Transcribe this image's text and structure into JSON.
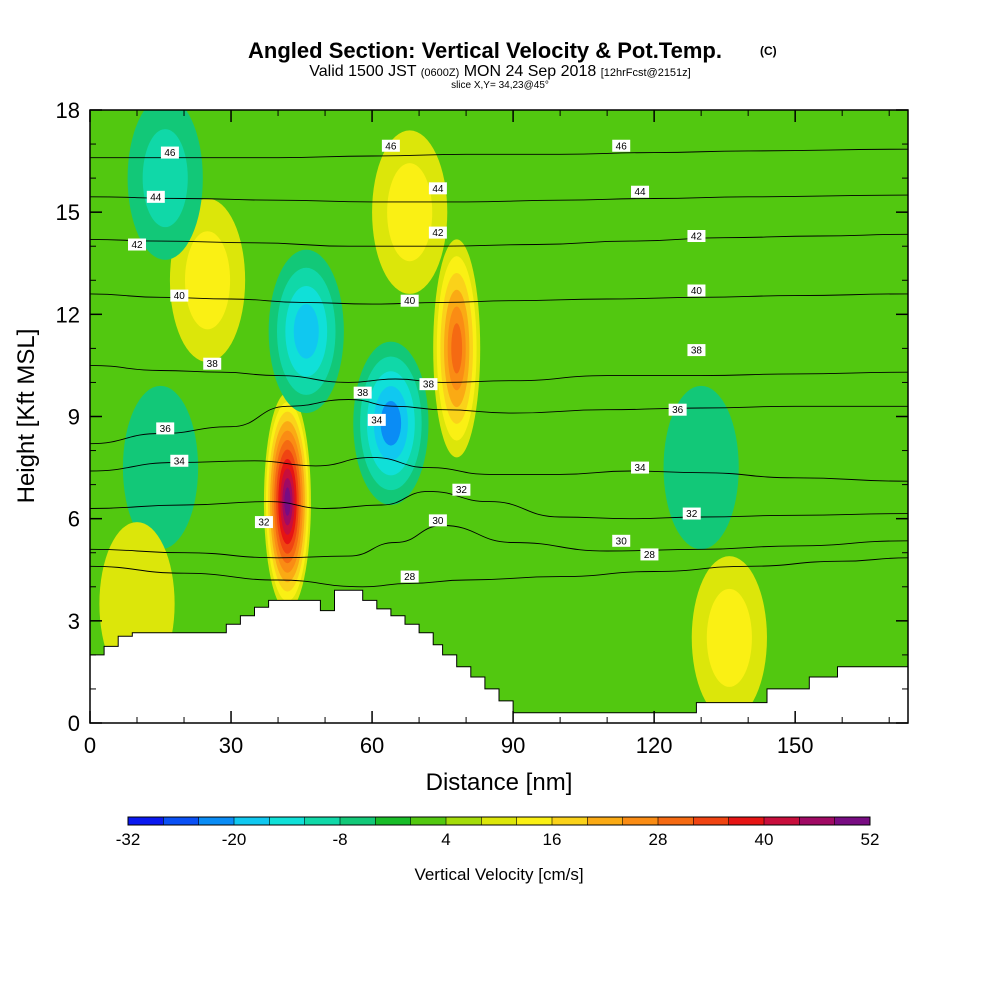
{
  "chart_data": {
    "type": "heatmap",
    "title": "Angled Section: Vertical Velocity & Pot.Temp.",
    "title_tag": "(C)",
    "subtitle_parts": [
      "Valid 1500 JST ",
      "(0600Z)",
      " MON 24 Sep 2018 ",
      "[12hrFcst@2151z]"
    ],
    "slice_text": "slice X,Y= 34,23@45°",
    "xlabel": "Distance [nm]",
    "ylabel": "Height [Kft MSL]",
    "xlim": [
      0,
      174
    ],
    "ylim": [
      0,
      18
    ],
    "xticks": [
      0,
      30,
      60,
      90,
      120,
      150
    ],
    "yticks": [
      0,
      3,
      6,
      9,
      12,
      15,
      18
    ],
    "colorbar": {
      "title": "Vertical Velocity [cm/s]",
      "tick_labels": [
        "-32",
        "-20",
        "-8",
        "4",
        "16",
        "28",
        "40",
        "52"
      ],
      "tick_values": [
        -32,
        -20,
        -8,
        4,
        16,
        28,
        40,
        52
      ],
      "min": -32,
      "max": 52,
      "step": 4,
      "colors": [
        "#0a18f0",
        "#0a50f5",
        "#0a8cf5",
        "#10c8f0",
        "#10e0d8",
        "#10d8a8",
        "#12c878",
        "#18bc28",
        "#52c810",
        "#a4dc0a",
        "#dce60a",
        "#faf014",
        "#fad21a",
        "#faaa14",
        "#fa8c14",
        "#f56a12",
        "#f04412",
        "#e61414",
        "#c80e3c",
        "#a00a64",
        "#780c82"
      ]
    },
    "terrain_kft": [
      [
        0,
        2
      ],
      [
        3,
        2
      ],
      [
        3,
        2.25
      ],
      [
        6,
        2.25
      ],
      [
        6,
        2.55
      ],
      [
        9,
        2.55
      ],
      [
        9,
        2.65
      ],
      [
        29,
        2.65
      ],
      [
        29,
        2.9
      ],
      [
        32,
        2.9
      ],
      [
        32,
        3.15
      ],
      [
        35,
        3.15
      ],
      [
        35,
        3.4
      ],
      [
        38,
        3.4
      ],
      [
        38,
        3.6
      ],
      [
        49,
        3.6
      ],
      [
        49,
        3.3
      ],
      [
        52,
        3.3
      ],
      [
        52,
        3.9
      ],
      [
        58,
        3.9
      ],
      [
        58,
        3.6
      ],
      [
        61,
        3.6
      ],
      [
        61,
        3.35
      ],
      [
        64,
        3.35
      ],
      [
        64,
        3.15
      ],
      [
        67,
        3.15
      ],
      [
        67,
        2.9
      ],
      [
        70,
        2.9
      ],
      [
        70,
        2.65
      ],
      [
        73,
        2.65
      ],
      [
        73,
        2.3
      ],
      [
        75,
        2.3
      ],
      [
        75,
        2.0
      ],
      [
        78,
        2.0
      ],
      [
        78,
        1.65
      ],
      [
        81,
        1.65
      ],
      [
        81,
        1.35
      ],
      [
        84,
        1.35
      ],
      [
        84,
        1.0
      ],
      [
        87,
        1.0
      ],
      [
        87,
        0.65
      ],
      [
        90,
        0.65
      ],
      [
        90,
        0.3
      ],
      [
        93,
        0.3
      ],
      [
        93,
        0.3
      ],
      [
        129,
        0.3
      ],
      [
        129,
        0.6
      ],
      [
        144,
        0.6
      ],
      [
        144,
        1.0
      ],
      [
        153,
        1.0
      ],
      [
        153,
        1.35
      ],
      [
        159,
        1.35
      ],
      [
        159,
        1.65
      ],
      [
        174,
        1.65
      ]
    ],
    "velocity_features_cms": [
      {
        "x": 42,
        "y": 6.5,
        "value": 50
      },
      {
        "x": 78,
        "y": 11,
        "value": 30
      },
      {
        "x": 64,
        "y": 8.8,
        "value": -24
      },
      {
        "x": 46,
        "y": 11.5,
        "value": -20
      },
      {
        "x": 15,
        "y": 7.5,
        "value": -10
      },
      {
        "x": 25,
        "y": 13,
        "value": 12
      },
      {
        "x": 68,
        "y": 15,
        "value": 14
      },
      {
        "x": 10,
        "y": 3.5,
        "value": 10
      },
      {
        "x": 136,
        "y": 2.5,
        "value": 14
      },
      {
        "x": 130,
        "y": 7.5,
        "value": -8
      },
      {
        "x": 16,
        "y": 16,
        "value": -12
      }
    ],
    "theta_contours_c": [
      {
        "value": 28,
        "points": [
          [
            0,
            4.6
          ],
          [
            20,
            4.4
          ],
          [
            40,
            4.2
          ],
          [
            58,
            4.0
          ],
          [
            68,
            4.1
          ],
          [
            80,
            4.2
          ],
          [
            100,
            4.3
          ],
          [
            120,
            4.45
          ],
          [
            140,
            4.6
          ],
          [
            160,
            4.75
          ],
          [
            174,
            4.85
          ]
        ]
      },
      {
        "value": 30,
        "points": [
          [
            0,
            5.1
          ],
          [
            20,
            5.0
          ],
          [
            40,
            4.85
          ],
          [
            55,
            4.9
          ],
          [
            65,
            5.3
          ],
          [
            75,
            5.8
          ],
          [
            90,
            5.3
          ],
          [
            110,
            5.05
          ],
          [
            130,
            5.1
          ],
          [
            150,
            5.2
          ],
          [
            174,
            5.35
          ]
        ]
      },
      {
        "value": 32,
        "points": [
          [
            0,
            6.3
          ],
          [
            20,
            6.4
          ],
          [
            38,
            6.5
          ],
          [
            50,
            6.3
          ],
          [
            62,
            6.4
          ],
          [
            72,
            6.8
          ],
          [
            85,
            6.5
          ],
          [
            100,
            6.05
          ],
          [
            115,
            6.0
          ],
          [
            130,
            6.05
          ],
          [
            150,
            6.1
          ],
          [
            174,
            6.15
          ]
        ]
      },
      {
        "value": 34,
        "points": [
          [
            0,
            7.4
          ],
          [
            18,
            7.65
          ],
          [
            35,
            7.7
          ],
          [
            48,
            7.55
          ],
          [
            60,
            7.8
          ],
          [
            72,
            7.5
          ],
          [
            85,
            7.3
          ],
          [
            100,
            7.3
          ],
          [
            115,
            7.4
          ],
          [
            130,
            7.35
          ],
          [
            150,
            7.2
          ],
          [
            174,
            7.1
          ]
        ]
      },
      {
        "value": 36,
        "points": [
          [
            0,
            8.2
          ],
          [
            15,
            8.5
          ],
          [
            30,
            8.7
          ],
          [
            42,
            9.3
          ],
          [
            55,
            9.5
          ],
          [
            65,
            9.3
          ],
          [
            75,
            9.2
          ],
          [
            90,
            9.1
          ],
          [
            110,
            9.2
          ],
          [
            130,
            9.25
          ],
          [
            150,
            9.3
          ],
          [
            174,
            9.3
          ]
        ]
      },
      {
        "value": 38,
        "points": [
          [
            0,
            10.5
          ],
          [
            15,
            10.35
          ],
          [
            28,
            10.3
          ],
          [
            40,
            10.2
          ],
          [
            55,
            10.0
          ],
          [
            65,
            10.1
          ],
          [
            75,
            10.0
          ],
          [
            90,
            10.05
          ],
          [
            110,
            10.2
          ],
          [
            130,
            10.2
          ],
          [
            150,
            10.25
          ],
          [
            174,
            10.3
          ]
        ]
      },
      {
        "value": 40,
        "points": [
          [
            0,
            12.6
          ],
          [
            15,
            12.5
          ],
          [
            30,
            12.45
          ],
          [
            45,
            12.35
          ],
          [
            60,
            12.3
          ],
          [
            75,
            12.35
          ],
          [
            90,
            12.4
          ],
          [
            110,
            12.45
          ],
          [
            130,
            12.5
          ],
          [
            150,
            12.55
          ],
          [
            174,
            12.6
          ]
        ]
      },
      {
        "value": 42,
        "points": [
          [
            0,
            14.2
          ],
          [
            15,
            14.15
          ],
          [
            35,
            14.1
          ],
          [
            55,
            14.0
          ],
          [
            75,
            14.0
          ],
          [
            95,
            14.05
          ],
          [
            115,
            14.15
          ],
          [
            135,
            14.25
          ],
          [
            155,
            14.3
          ],
          [
            174,
            14.35
          ]
        ]
      },
      {
        "value": 44,
        "points": [
          [
            0,
            15.45
          ],
          [
            20,
            15.4
          ],
          [
            40,
            15.35
          ],
          [
            60,
            15.3
          ],
          [
            80,
            15.3
          ],
          [
            100,
            15.35
          ],
          [
            120,
            15.4
          ],
          [
            140,
            15.45
          ],
          [
            174,
            15.5
          ]
        ]
      },
      {
        "value": 46,
        "points": [
          [
            0,
            16.6
          ],
          [
            20,
            16.6
          ],
          [
            40,
            16.6
          ],
          [
            60,
            16.65
          ],
          [
            80,
            16.7
          ],
          [
            100,
            16.7
          ],
          [
            120,
            16.75
          ],
          [
            140,
            16.8
          ],
          [
            174,
            16.85
          ]
        ]
      }
    ],
    "contour_labels": [
      {
        "text": "46",
        "x": 17,
        "y": 16.75
      },
      {
        "text": "46",
        "x": 64,
        "y": 16.95
      },
      {
        "text": "46",
        "x": 113,
        "y": 16.95
      },
      {
        "text": "44",
        "x": 14,
        "y": 15.45
      },
      {
        "text": "44",
        "x": 74,
        "y": 15.7
      },
      {
        "text": "44",
        "x": 117,
        "y": 15.6
      },
      {
        "text": "42",
        "x": 10,
        "y": 14.05
      },
      {
        "text": "42",
        "x": 74,
        "y": 14.4
      },
      {
        "text": "42",
        "x": 129,
        "y": 14.3
      },
      {
        "text": "40",
        "x": 19,
        "y": 12.55
      },
      {
        "text": "40",
        "x": 68,
        "y": 12.4
      },
      {
        "text": "40",
        "x": 129,
        "y": 12.7
      },
      {
        "text": "38",
        "x": 26,
        "y": 10.55
      },
      {
        "text": "38",
        "x": 58,
        "y": 9.7
      },
      {
        "text": "38",
        "x": 72,
        "y": 9.95
      },
      {
        "text": "38",
        "x": 129,
        "y": 10.95
      },
      {
        "text": "36",
        "x": 16,
        "y": 8.65
      },
      {
        "text": "36",
        "x": 125,
        "y": 9.2
      },
      {
        "text": "34",
        "x": 19,
        "y": 7.7
      },
      {
        "text": "34",
        "x": 61,
        "y": 8.9
      },
      {
        "text": "34",
        "x": 117,
        "y": 7.5
      },
      {
        "text": "32",
        "x": 37,
        "y": 5.9
      },
      {
        "text": "32",
        "x": 79,
        "y": 6.85
      },
      {
        "text": "32",
        "x": 128,
        "y": 6.15
      },
      {
        "text": "30",
        "x": 74,
        "y": 5.95
      },
      {
        "text": "30",
        "x": 113,
        "y": 5.35
      },
      {
        "text": "28",
        "x": 68,
        "y": 4.3
      },
      {
        "text": "28",
        "x": 119,
        "y": 4.95
      }
    ]
  }
}
